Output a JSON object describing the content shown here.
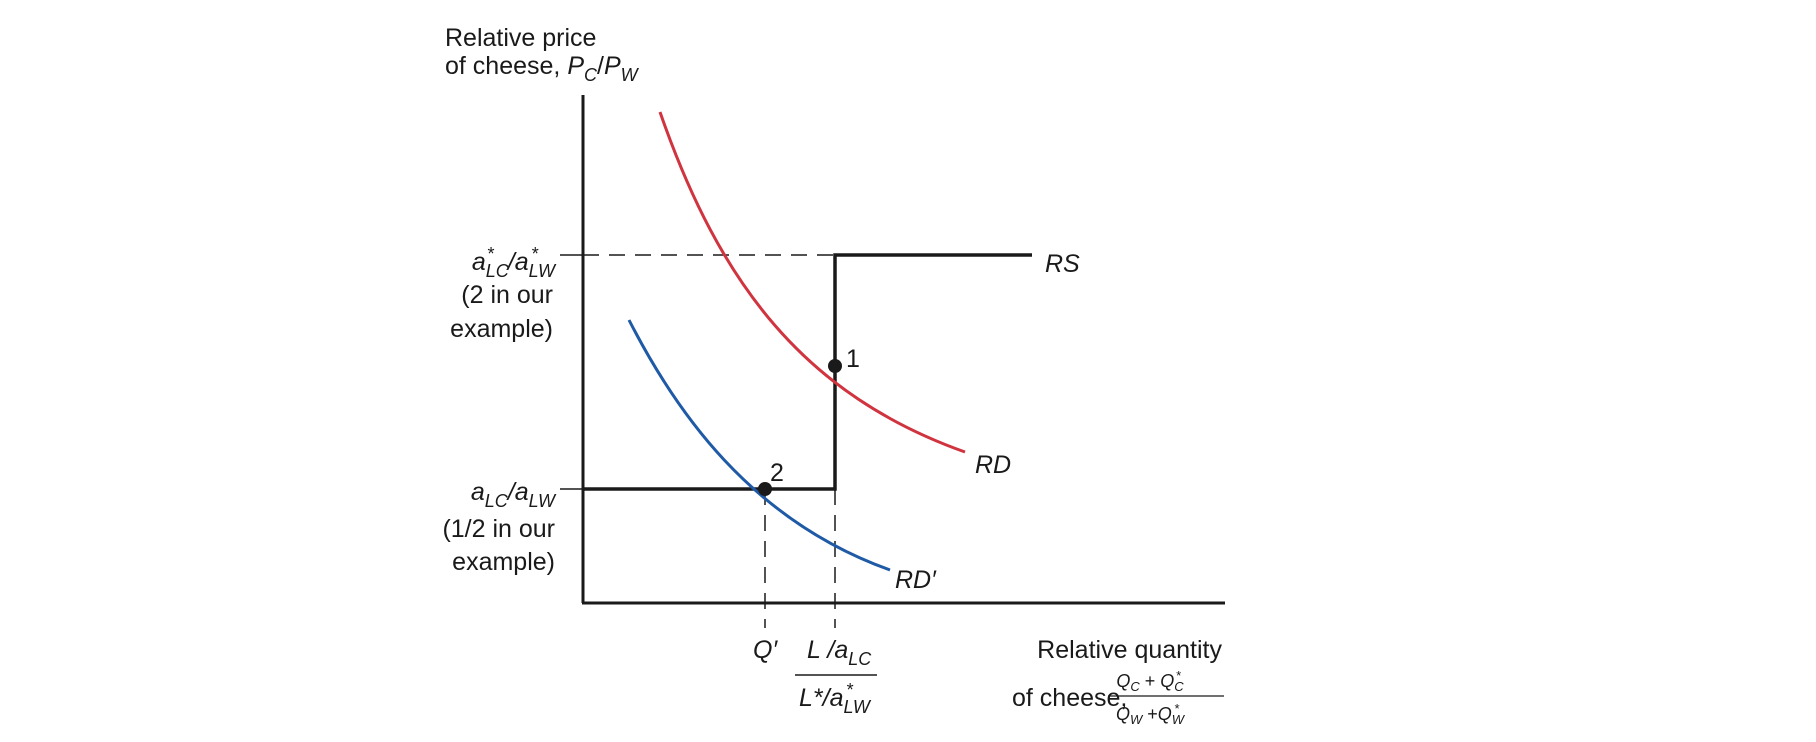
{
  "y_axis_label": {
    "line1": "Relative price",
    "line2_prefix": "of cheese, ",
    "P": "P",
    "C": "C",
    "slash": "/",
    "W": "W"
  },
  "x_axis_label": {
    "line1": "Relative quantity",
    "line2_prefix": "of cheese, ",
    "numerator": {
      "Q": "Q",
      "C": "C",
      "plus": " + ",
      "Qs": "Q",
      "Cs": "C",
      "star": "*"
    },
    "denominator": {
      "Q": "Q",
      "W": "W",
      "plus": " +",
      "Qs": "Q",
      "Ws": "W",
      "star": "*"
    }
  },
  "price_high": {
    "a": "a",
    "sub": "LC",
    "star": "*",
    "slash": "/",
    "a2": "a",
    "sub2": "LW",
    "star2": "*",
    "note1": "(2 in our",
    "note2": "example)"
  },
  "price_low": {
    "a": "a",
    "sub": "LC",
    "slash": "/",
    "a2": "a",
    "sub2": "LW",
    "note1": "(1/2 in our",
    "note2": "example)"
  },
  "q_prime": "Q′",
  "q_break": {
    "num_L": "L",
    "num_slash": " /",
    "num_a": "a",
    "num_sub": "LC",
    "den_L": "L",
    "den_star": "*",
    "den_slash": "/",
    "den_a": "a",
    "den_sub": "LW",
    "den_star2": "*"
  },
  "curves": {
    "rs": "RS",
    "rd": "RD",
    "rd_prime": "RD′",
    "rd_color": "#d0343f",
    "rd_prime_color": "#1f5aa6",
    "axis_color": "#1a1a1a"
  },
  "points": {
    "p1": "1",
    "p2": "2"
  }
}
